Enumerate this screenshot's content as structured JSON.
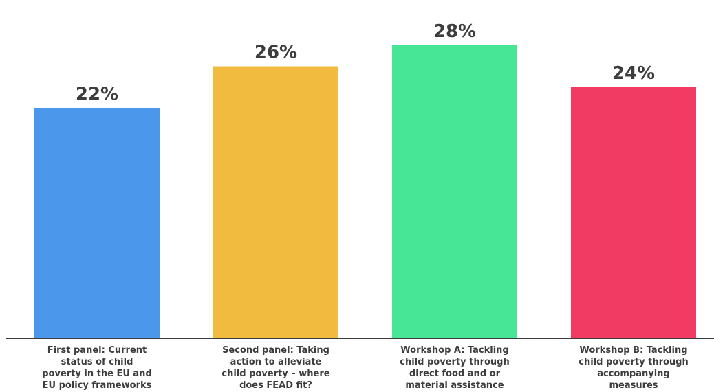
{
  "chart_data": {
    "type": "bar",
    "categories": [
      "First panel: Current status of child poverty in the EU and EU policy frameworks",
      "Second panel: Taking action to alleviate child poverty – where does FEAD fit?",
      "Workshop A: Tackling child poverty through direct food and or material assistance",
      "Workshop B: Tackling child poverty through accompanying measures"
    ],
    "category_lines": [
      [
        "First panel: Current",
        "status of child",
        "poverty in the EU and",
        "EU policy frameworks"
      ],
      [
        "Second panel: Taking",
        "action to alleviate",
        "child poverty – where",
        "does FEAD fit?"
      ],
      [
        "Workshop A: Tackling",
        "child poverty through",
        "direct food and or",
        "material assistance"
      ],
      [
        "Workshop B: Tackling",
        "child poverty through",
        "accompanying",
        "measures"
      ]
    ],
    "values": [
      22,
      26,
      28,
      24
    ],
    "value_labels": [
      "22%",
      "26%",
      "28%",
      "24%"
    ],
    "colors": [
      "#4a97ec",
      "#f0bb3f",
      "#47e596",
      "#f23b63"
    ],
    "ylim": [
      0,
      30
    ],
    "grid": false,
    "title": "",
    "xlabel": "",
    "ylabel": ""
  }
}
